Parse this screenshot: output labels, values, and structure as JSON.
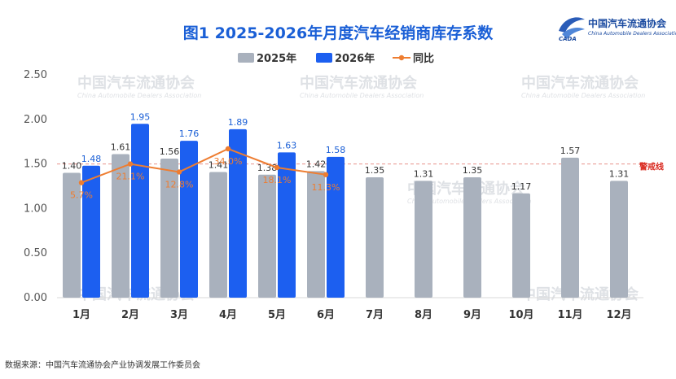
{
  "logo": {
    "name_cn": "中国汽车流通协会",
    "name_en": "China Automobile Dealers Association"
  },
  "source": "数据来源：中国汽车流通协会产业协调发展工作委员会",
  "chart_data": {
    "type": "bar",
    "title": "图1  2025-2026年月度汽车经销商库存系数",
    "categories": [
      "1月",
      "2月",
      "3月",
      "4月",
      "5月",
      "6月",
      "7月",
      "8月",
      "9月",
      "10月",
      "11月",
      "12月"
    ],
    "series": [
      {
        "name": "2025年",
        "type": "bar",
        "color": "#a9b1bd",
        "values": [
          1.4,
          1.61,
          1.56,
          1.41,
          1.38,
          1.42,
          1.35,
          1.31,
          1.35,
          1.17,
          1.57,
          1.31
        ]
      },
      {
        "name": "2026年",
        "type": "bar",
        "color": "#1c5ff0",
        "values": [
          1.48,
          1.95,
          1.76,
          1.89,
          1.63,
          1.58,
          null,
          null,
          null,
          null,
          null,
          null
        ]
      },
      {
        "name": "同比",
        "type": "line",
        "color": "#ee7d31",
        "values": [
          "5.7%",
          "21.1%",
          "12.8%",
          "34.0%",
          "18.1%",
          "11.3%",
          null,
          null,
          null,
          null,
          null,
          null
        ],
        "points_on_axis": [
          1.29,
          1.5,
          1.41,
          1.67,
          1.46,
          1.38,
          null,
          null,
          null,
          null,
          null,
          null
        ]
      }
    ],
    "y_ticks": [
      "0.00",
      "0.50",
      "1.00",
      "1.50",
      "2.00",
      "2.50"
    ],
    "ylim": [
      0,
      2.5
    ],
    "warning_line": {
      "value": 1.5,
      "label": "警戒线",
      "color": "#e8938b"
    },
    "grid": false,
    "legend_position": "top-center"
  }
}
